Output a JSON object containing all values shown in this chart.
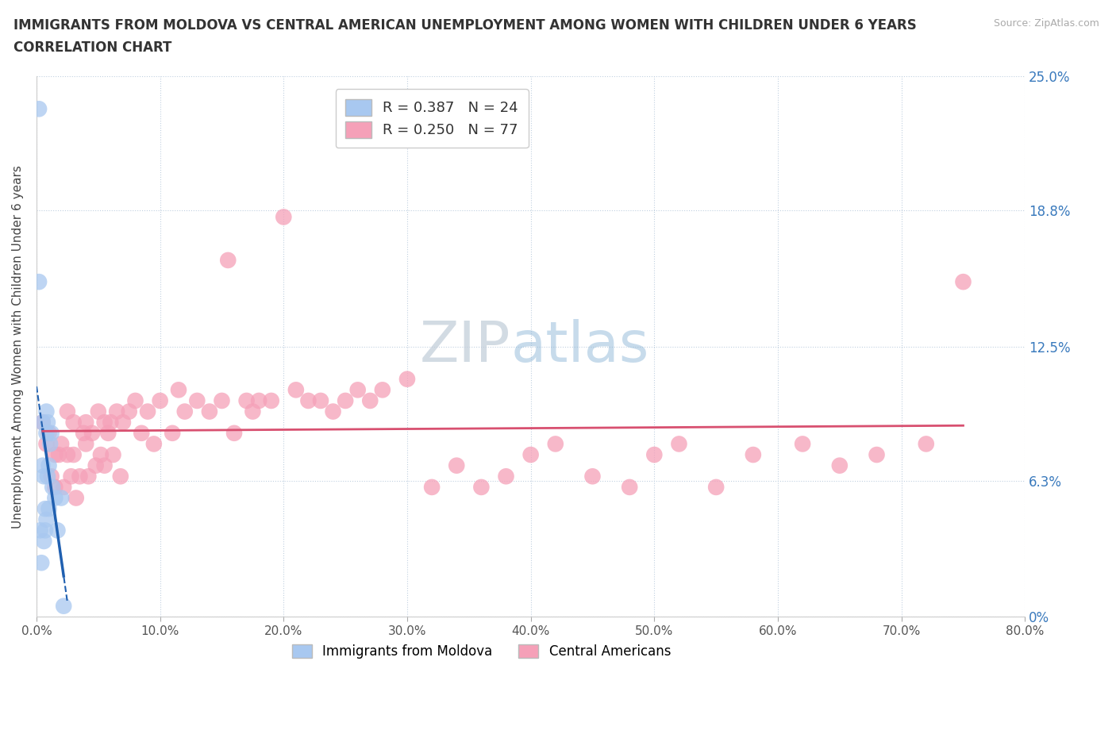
{
  "title_line1": "IMMIGRANTS FROM MOLDOVA VS CENTRAL AMERICAN UNEMPLOYMENT AMONG WOMEN WITH CHILDREN UNDER 6 YEARS",
  "title_line2": "CORRELATION CHART",
  "source": "Source: ZipAtlas.com",
  "ylabel": "Unemployment Among Women with Children Under 6 years",
  "xlim": [
    0.0,
    0.8
  ],
  "ylim": [
    0.0,
    0.25
  ],
  "yticks": [
    0.0,
    0.063,
    0.125,
    0.188,
    0.25
  ],
  "ytick_labels": [
    "0%",
    "6.3%",
    "12.5%",
    "18.8%",
    "25.0%"
  ],
  "xticks": [
    0.0,
    0.1,
    0.2,
    0.3,
    0.4,
    0.5,
    0.6,
    0.7,
    0.8
  ],
  "xtick_labels": [
    "0.0%",
    "10.0%",
    "20.0%",
    "30.0%",
    "40.0%",
    "50.0%",
    "60.0%",
    "70.0%",
    "80.0%"
  ],
  "legend_labels": [
    "Immigrants from Moldova",
    "Central Americans"
  ],
  "r_moldova": 0.387,
  "n_moldova": 24,
  "r_central": 0.25,
  "n_central": 77,
  "color_moldova": "#a8c8f0",
  "color_central": "#f5a0b8",
  "line_color_moldova": "#2060b0",
  "line_color_central": "#d85070",
  "watermark_zip": "ZIP",
  "watermark_atlas": "atlas",
  "moldova_x": [
    0.002,
    0.002,
    0.003,
    0.004,
    0.005,
    0.005,
    0.006,
    0.006,
    0.007,
    0.007,
    0.008,
    0.008,
    0.008,
    0.009,
    0.009,
    0.01,
    0.01,
    0.011,
    0.012,
    0.013,
    0.015,
    0.017,
    0.02,
    0.022
  ],
  "moldova_y": [
    0.235,
    0.155,
    0.04,
    0.025,
    0.07,
    0.09,
    0.035,
    0.065,
    0.04,
    0.05,
    0.095,
    0.085,
    0.045,
    0.09,
    0.065,
    0.07,
    0.05,
    0.08,
    0.085,
    0.06,
    0.055,
    0.04,
    0.055,
    0.005
  ],
  "central_x": [
    0.005,
    0.008,
    0.01,
    0.012,
    0.015,
    0.015,
    0.018,
    0.02,
    0.022,
    0.025,
    0.025,
    0.028,
    0.03,
    0.03,
    0.032,
    0.035,
    0.038,
    0.04,
    0.04,
    0.042,
    0.045,
    0.048,
    0.05,
    0.052,
    0.055,
    0.055,
    0.058,
    0.06,
    0.062,
    0.065,
    0.068,
    0.07,
    0.075,
    0.08,
    0.085,
    0.09,
    0.095,
    0.1,
    0.11,
    0.115,
    0.12,
    0.13,
    0.14,
    0.15,
    0.155,
    0.16,
    0.17,
    0.175,
    0.18,
    0.19,
    0.2,
    0.21,
    0.22,
    0.23,
    0.24,
    0.25,
    0.26,
    0.27,
    0.28,
    0.3,
    0.32,
    0.34,
    0.36,
    0.38,
    0.4,
    0.42,
    0.45,
    0.48,
    0.5,
    0.52,
    0.55,
    0.58,
    0.62,
    0.65,
    0.68,
    0.72,
    0.75
  ],
  "central_y": [
    0.09,
    0.08,
    0.085,
    0.065,
    0.06,
    0.075,
    0.075,
    0.08,
    0.06,
    0.095,
    0.075,
    0.065,
    0.09,
    0.075,
    0.055,
    0.065,
    0.085,
    0.09,
    0.08,
    0.065,
    0.085,
    0.07,
    0.095,
    0.075,
    0.09,
    0.07,
    0.085,
    0.09,
    0.075,
    0.095,
    0.065,
    0.09,
    0.095,
    0.1,
    0.085,
    0.095,
    0.08,
    0.1,
    0.085,
    0.105,
    0.095,
    0.1,
    0.095,
    0.1,
    0.165,
    0.085,
    0.1,
    0.095,
    0.1,
    0.1,
    0.185,
    0.105,
    0.1,
    0.1,
    0.095,
    0.1,
    0.105,
    0.1,
    0.105,
    0.11,
    0.06,
    0.07,
    0.06,
    0.065,
    0.075,
    0.08,
    0.065,
    0.06,
    0.075,
    0.08,
    0.06,
    0.075,
    0.08,
    0.07,
    0.075,
    0.08,
    0.155
  ]
}
